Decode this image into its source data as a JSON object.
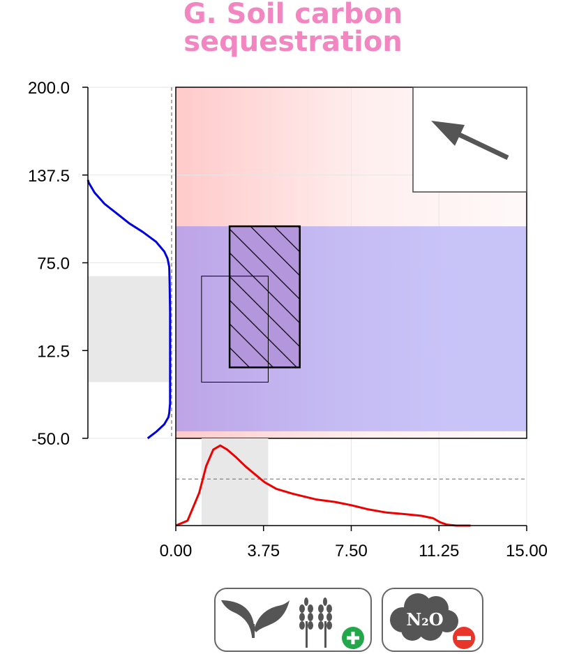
{
  "title_lines": [
    "G. Soil carbon",
    "sequestration"
  ],
  "colors": {
    "title": "#f186c0",
    "main_density_y": "#0000dd",
    "density_x": "#ee0000",
    "blue_band": "#c8c4f8",
    "red_gradient": "#ffcaca",
    "hatch_box_fill": "#b496dc",
    "badge_icon": "#555555",
    "badge_plus": "#22a84a",
    "badge_minus": "#e8352a"
  },
  "icons": [
    "seedling-icon",
    "wheat-icon",
    "plus-icon",
    "n2o-cloud-icon",
    "minus-icon"
  ],
  "badge_text": {
    "n2o": "N₂O"
  },
  "chart_data": {
    "type": "scatter",
    "title": "G. Soil carbon sequestration",
    "xlim": [
      0,
      15
    ],
    "ylim": [
      -50,
      200
    ],
    "x_ticks": [
      "0.00",
      "3.75",
      "7.50",
      "11.25",
      "15.00"
    ],
    "y_ticks": [
      "200.0",
      "137.5",
      "75.0",
      "12.5",
      "-50.0"
    ],
    "x_tick_values": [
      0,
      3.75,
      7.5,
      11.25,
      15
    ],
    "y_tick_values": [
      200,
      137.5,
      75,
      12.5,
      -50
    ],
    "grid": true,
    "arrow_inset": {
      "direction": "up-left"
    },
    "blue_band_y": [
      -45,
      101
    ],
    "hatched_box": {
      "x": [
        2.3,
        5.3
      ],
      "y": [
        0.5,
        101
      ]
    },
    "outline_box": {
      "x": [
        1.1,
        3.95
      ],
      "y": [
        -10,
        65.5
      ]
    },
    "y_shaded_range": [
      -10,
      65.5
    ],
    "x_shaded_range": [
      1.1,
      3.95
    ],
    "x_density_reference": 0.57,
    "y_density_reference": 0,
    "x_density": {
      "x": [
        0,
        0.5,
        1.0,
        1.3,
        1.6,
        1.9,
        2.2,
        2.6,
        3.0,
        3.5,
        3.8,
        4.3,
        5.0,
        6.0,
        6.8,
        7.5,
        8.2,
        9.0,
        9.8,
        10.5,
        11.0,
        11.3,
        11.6,
        12.0,
        12.4,
        12.6
      ],
      "density": [
        0.0,
        0.06,
        0.4,
        0.73,
        0.93,
        0.98,
        0.93,
        0.83,
        0.72,
        0.6,
        0.53,
        0.45,
        0.39,
        0.32,
        0.29,
        0.25,
        0.2,
        0.16,
        0.14,
        0.12,
        0.09,
        0.04,
        0.01,
        0.0,
        0.0,
        0.0
      ]
    },
    "y_density": {
      "y": [
        -50,
        -45,
        -40,
        -35,
        -32,
        -25,
        -15,
        0,
        20,
        40,
        60,
        72,
        78,
        83,
        90,
        97,
        103,
        110,
        117,
        125,
        132,
        134
      ],
      "density": [
        0.72,
        0.83,
        0.92,
        0.97,
        0.98,
        0.99,
        0.99,
        0.99,
        0.99,
        0.99,
        0.985,
        0.98,
        0.96,
        0.92,
        0.82,
        0.66,
        0.5,
        0.35,
        0.2,
        0.08,
        0.01,
        0.0
      ]
    }
  }
}
